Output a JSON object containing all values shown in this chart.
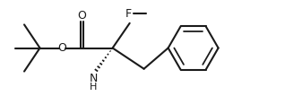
{
  "bg_color": "#ffffff",
  "line_color": "#1a1a1a",
  "lw": 1.5,
  "fs": 9.0,
  "figsize": [
    3.18,
    1.07
  ],
  "dpi": 100,
  "xlim": [
    0,
    10
  ],
  "ylim": [
    0,
    3.36
  ]
}
